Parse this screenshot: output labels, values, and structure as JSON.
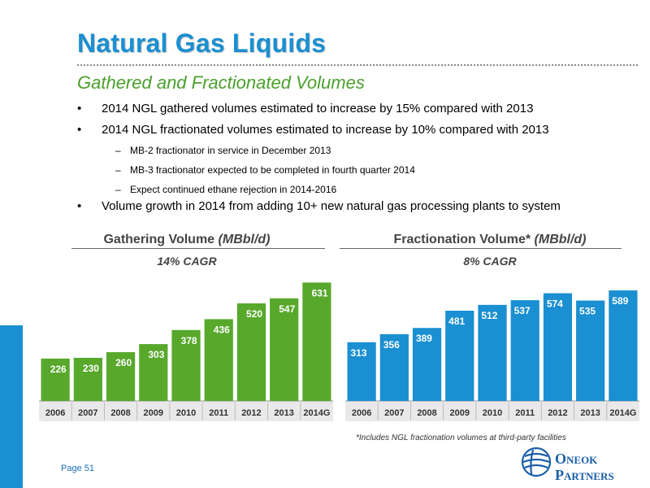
{
  "header": {
    "title": "Natural Gas Liquids",
    "subtitle": "Gathered and Fractionated Volumes"
  },
  "bullets": [
    "2014 NGL gathered volumes estimated to increase by 15% compared with 2013",
    "2014 NGL fractionated volumes estimated to increase by 10% compared with 2013"
  ],
  "sub_bullets": [
    "MB-2 fractionator in service in December 2013",
    "MB-3 fractionator expected to be completed in fourth quarter 2014",
    "Expect continued ethane rejection in 2014-2016"
  ],
  "bullet_last": "Volume growth in 2014 from adding 10+ new natural gas processing plants to system",
  "bullet_symbol": "•",
  "dash_symbol": "–",
  "colors": {
    "title_blue": "#1a8fd1",
    "green": "#4aa02c",
    "gather_bar": "#58a82c",
    "frac_bar": "#1a8fd1"
  },
  "chart_data": [
    {
      "type": "bar",
      "title": "Gathering Volume",
      "title_unit": "(MBbl/d)",
      "annotation": "14% CAGR",
      "categories": [
        "2006",
        "2007",
        "2008",
        "2009",
        "2010",
        "2011",
        "2012",
        "2013",
        "2014G"
      ],
      "values": [
        226,
        230,
        260,
        303,
        378,
        436,
        520,
        547,
        631
      ],
      "ylim": [
        0,
        650
      ],
      "grid": false
    },
    {
      "type": "bar",
      "title": "Fractionation Volume*",
      "title_unit": "(MBbl/d)",
      "annotation": "8% CAGR",
      "categories": [
        "2006",
        "2007",
        "2008",
        "2009",
        "2010",
        "2011",
        "2012",
        "2013",
        "2014G"
      ],
      "values": [
        313,
        356,
        389,
        481,
        512,
        537,
        574,
        535,
        589
      ],
      "ylim": [
        0,
        650
      ],
      "grid": false
    }
  ],
  "footnote": "*Includes NGL fractionation volumes at third-party facilities",
  "page_label": "Page 51",
  "logo": {
    "line1_first": "O",
    "line1_rest": "NEOK",
    "line2_first": "P",
    "line2_rest": "ARTNERS",
    "icon": "oneok-logo-icon"
  }
}
